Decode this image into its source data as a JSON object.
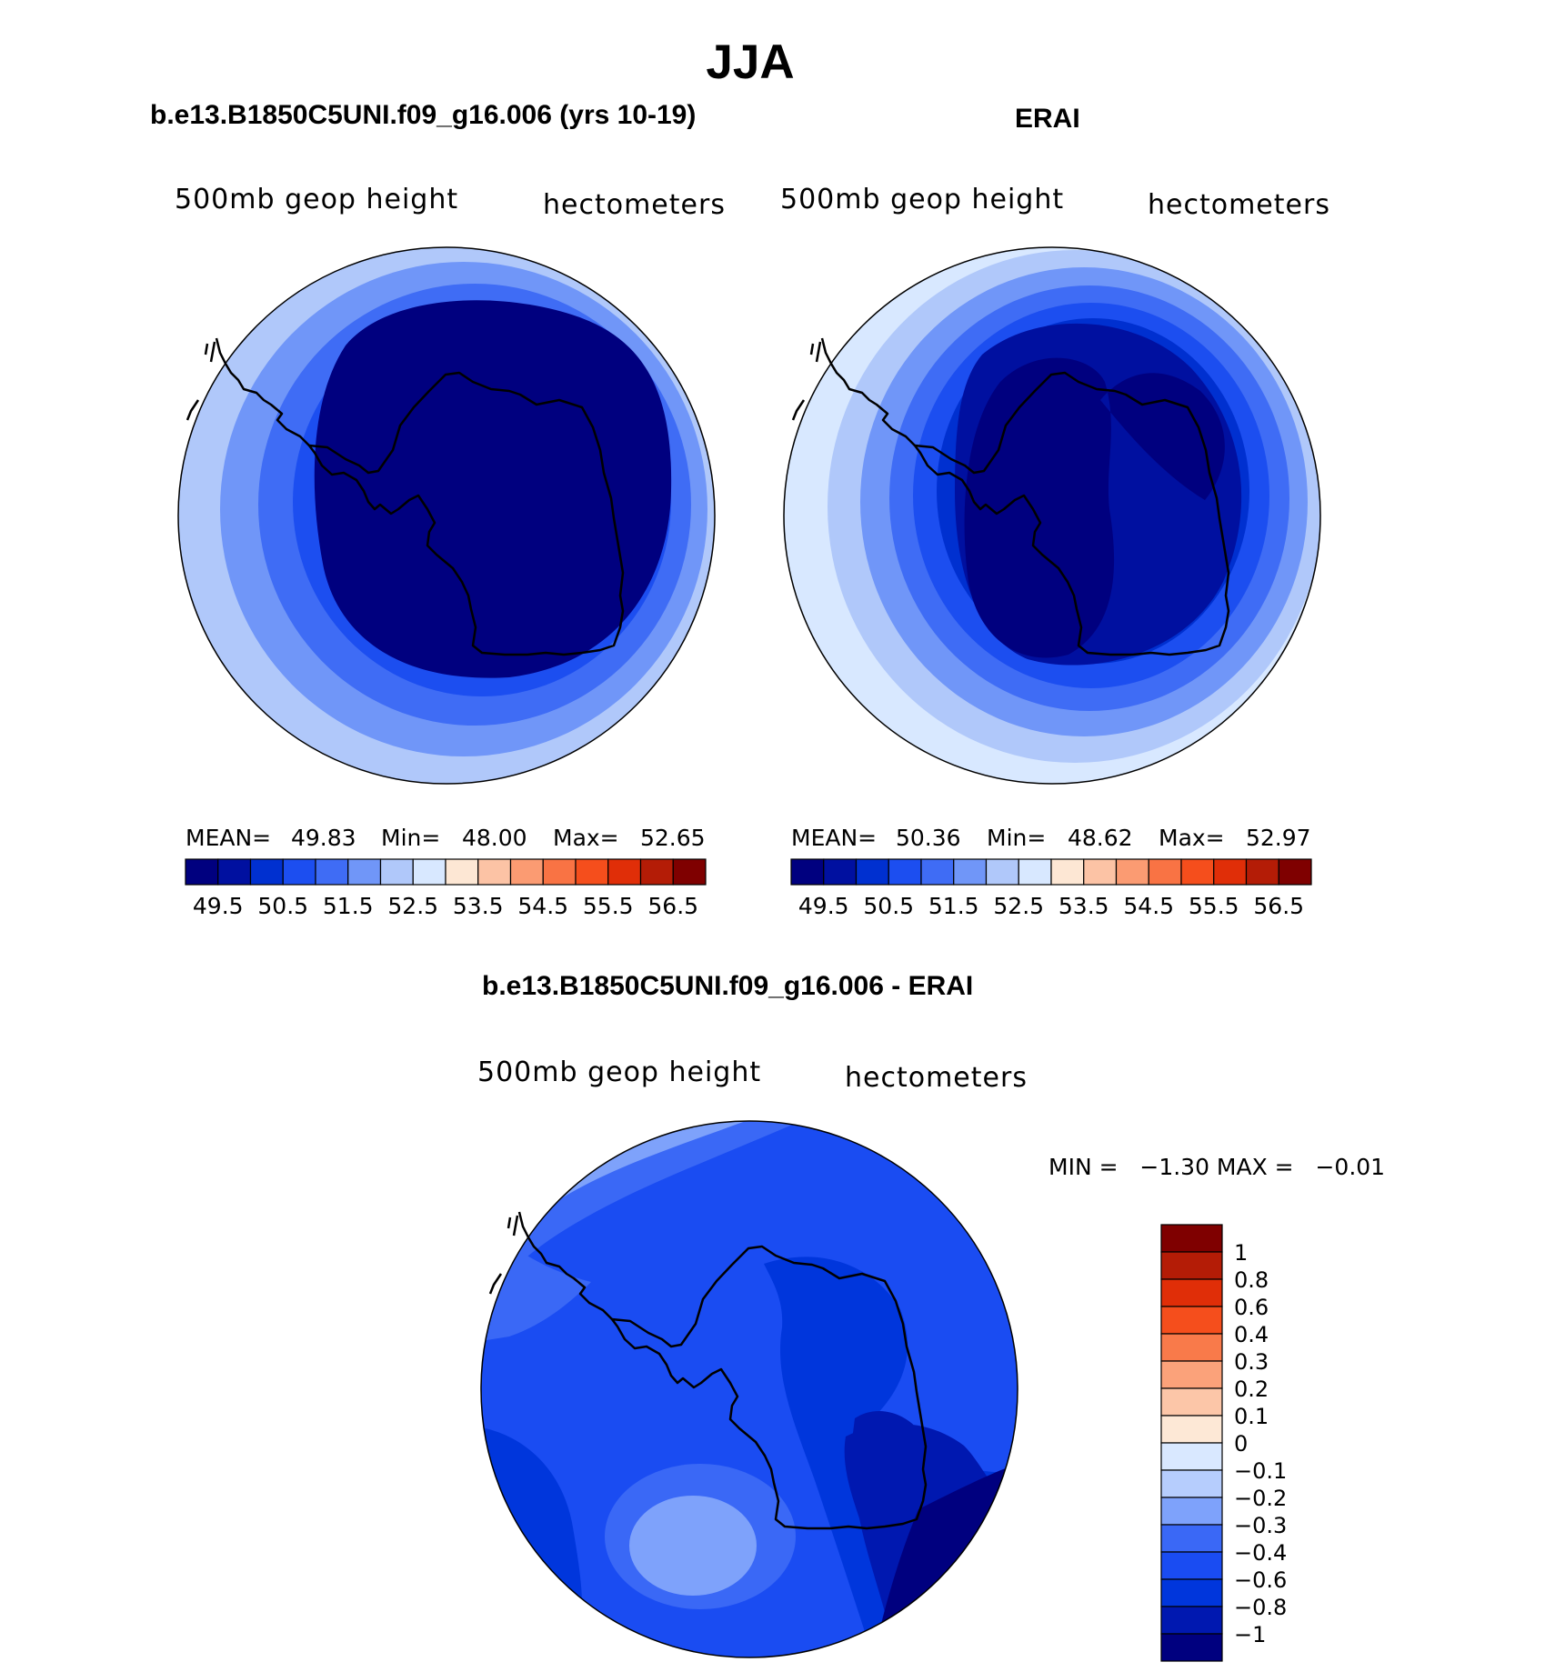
{
  "main_title": "JJA",
  "panel_titles": {
    "left": "b.e13.B1850C5UNI.f09_g16.006 (yrs 10-19)",
    "right": "ERAI",
    "diff": "b.e13.B1850C5UNI.f09_g16.006 - ERAI"
  },
  "variable_label": "500mb geop height",
  "units_label": "hectometers",
  "stats": {
    "left": {
      "mean_label": "MEAN=",
      "mean": "49.83",
      "min_label": "Min=",
      "min": "48.00",
      "max_label": "Max=",
      "max": "52.65"
    },
    "right": {
      "mean_label": "MEAN=",
      "mean": "50.36",
      "min_label": "Min=",
      "min": "48.62",
      "max_label": "Max=",
      "max": "52.97"
    },
    "diff": {
      "text": "MIN =   −1.30 MAX =   −0.01"
    }
  },
  "colors": {
    "abs_scale": [
      "#00007f",
      "#0010a0",
      "#0030d0",
      "#1c4ef0",
      "#3f6cf5",
      "#7096f8",
      "#b0c8fa",
      "#d8e8ff",
      "#fde7d4",
      "#fcc3a5",
      "#fb9b72",
      "#f97344",
      "#f54e1c",
      "#e02e08",
      "#b41c06",
      "#7f0000"
    ],
    "diff_scale": [
      "#00007f",
      "#0018b0",
      "#0036dc",
      "#1a4cf2",
      "#3a68f6",
      "#7ea2fb",
      "#b6cdfd",
      "#d9e8ff",
      "#fde8d6",
      "#fcc6a8",
      "#fba27a",
      "#f97a4a",
      "#f54e1c",
      "#e02e08",
      "#b41c06",
      "#7f0000"
    ],
    "coast": "#000000"
  },
  "chart_data": [
    {
      "type": "heatmap",
      "title": "b.e13.B1850C5UNI.f09_g16.006 (yrs 10-19)",
      "variable": "500mb geop height",
      "units": "hectometers",
      "projection": "south polar stereographic",
      "colorbar_ticks": [
        "49.5",
        "50.5",
        "51.5",
        "52.5",
        "53.5",
        "54.5",
        "55.5",
        "56.5"
      ],
      "contour_levels": [
        49.5,
        49.75,
        50,
        50.25,
        50.5,
        51,
        51.5,
        52,
        52.5,
        53,
        53.5,
        54,
        54.5,
        55,
        55.5,
        56,
        56.5
      ],
      "mean": 49.83,
      "min": 48.0,
      "max": 52.65
    },
    {
      "type": "heatmap",
      "title": "ERAI",
      "variable": "500mb geop height",
      "units": "hectometers",
      "projection": "south polar stereographic",
      "colorbar_ticks": [
        "49.5",
        "50.5",
        "51.5",
        "52.5",
        "53.5",
        "54.5",
        "55.5",
        "56.5"
      ],
      "contour_levels": [
        49.5,
        49.75,
        50,
        50.25,
        50.5,
        51,
        51.5,
        52,
        52.5,
        53,
        53.5,
        54,
        54.5,
        55,
        55.5,
        56,
        56.5
      ],
      "mean": 50.36,
      "min": 48.62,
      "max": 52.97
    },
    {
      "type": "heatmap",
      "title": "b.e13.B1850C5UNI.f09_g16.006 - ERAI",
      "variable": "500mb geop height",
      "units": "hectometers",
      "projection": "south polar stereographic",
      "colorbar_ticks": [
        "1",
        "0.8",
        "0.6",
        "0.4",
        "0.3",
        "0.2",
        "0.1",
        "0",
        "−0.1",
        "−0.2",
        "−0.3",
        "−0.4",
        "−0.6",
        "−0.8",
        "−1"
      ],
      "contour_levels": [
        -1,
        -0.8,
        -0.6,
        -0.4,
        -0.3,
        -0.2,
        -0.1,
        0,
        0.1,
        0.2,
        0.3,
        0.4,
        0.6,
        0.8,
        1
      ],
      "min": -1.3,
      "max": -0.01
    }
  ]
}
